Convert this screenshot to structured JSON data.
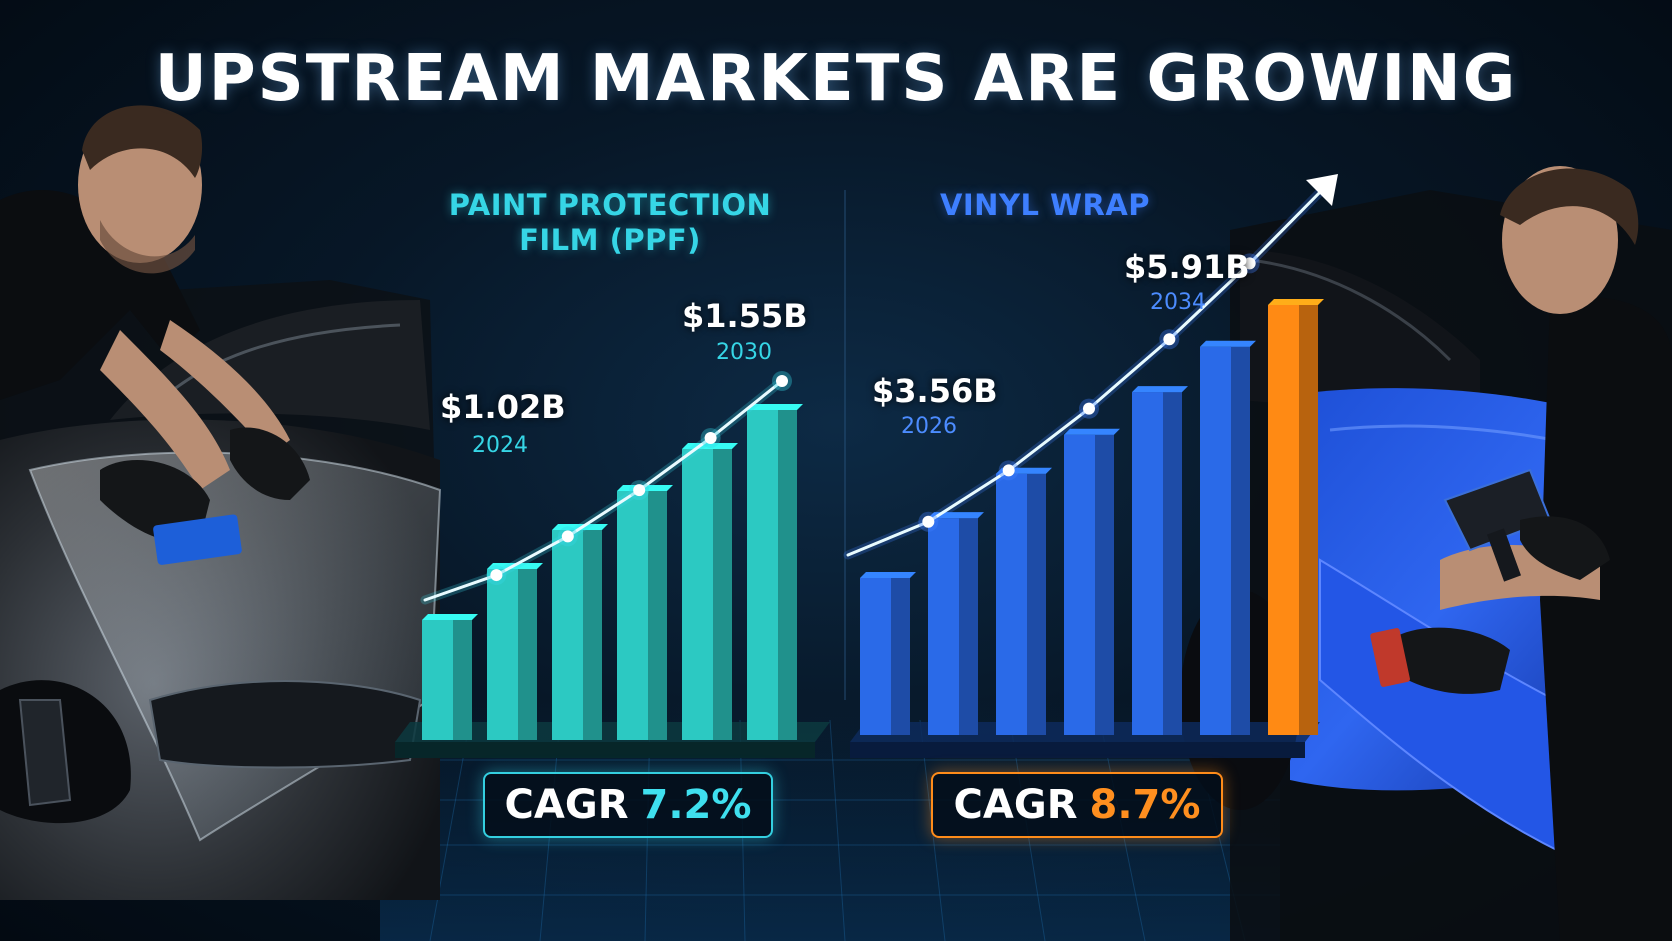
{
  "title": "UPSTREAM MARKETS ARE GROWING",
  "colors": {
    "ppf": "#2cc9c2",
    "vinyl": "#2a6ae8",
    "highlight": "#ff8a14",
    "ppf_accent": "#36d6e6",
    "vinyl_accent": "#3e7fff"
  },
  "chart_data": [
    {
      "type": "bar",
      "title": "PAINT PROTECTION FILM (PPF)",
      "title_lines": [
        "PAINT PROTECTION",
        "FILM (PPF)"
      ],
      "trend_line": true,
      "annotations": [
        {
          "value": "$1.02B",
          "year": "2024"
        },
        {
          "value": "$1.55B",
          "year": "2030"
        }
      ],
      "values": [
        0.85,
        1.02,
        1.15,
        1.28,
        1.42,
        1.55
      ],
      "cagr_label": "CAGR",
      "cagr_value": "7.2%"
    },
    {
      "type": "bar",
      "title": "VINYL WRAP",
      "title_lines": [
        "VINYL WRAP"
      ],
      "trend_line": true,
      "annotations": [
        {
          "value": "$3.56B",
          "year": "2026"
        },
        {
          "value": "$5.91B",
          "year": "2034"
        }
      ],
      "values": [
        2.9,
        3.56,
        4.05,
        4.48,
        4.95,
        5.45,
        5.91
      ],
      "highlight_index": 6,
      "cagr_label": "CAGR",
      "cagr_value": "8.7%"
    }
  ]
}
